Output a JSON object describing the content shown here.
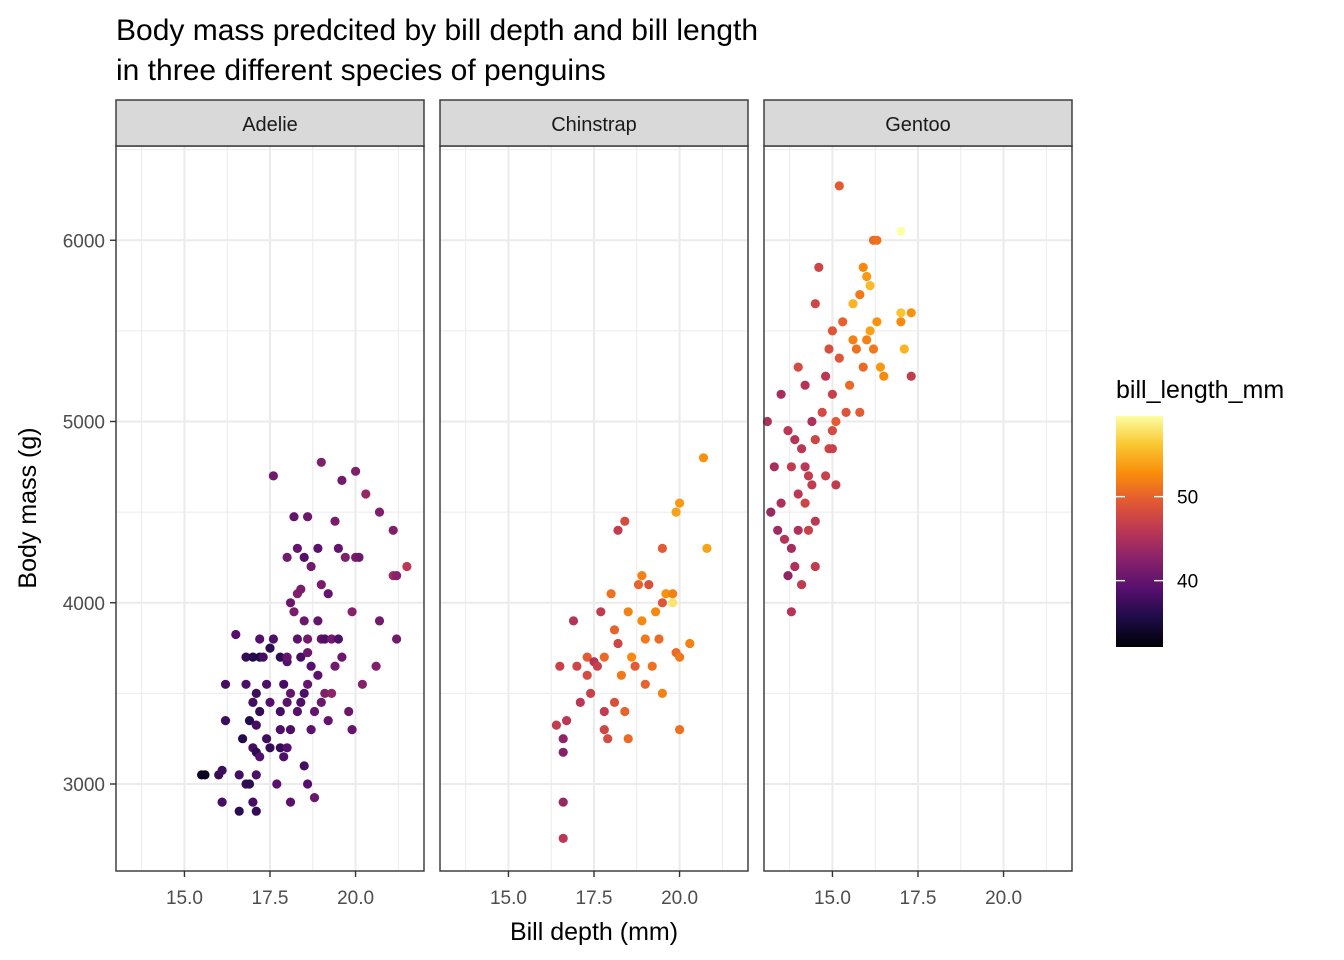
{
  "chart_data": {
    "type": "scatter",
    "title": "Body mass predcited by bill depth and bill length\nin three different species of penguins",
    "xlabel": "Bill depth (mm)",
    "ylabel": "Body mass (g)",
    "facets": [
      "Adelie",
      "Chinstrap",
      "Gentoo"
    ],
    "xlim": [
      13.0,
      22.0
    ],
    "ylim": [
      2520,
      6520
    ],
    "x_ticks": [
      15.0,
      17.5,
      20.0
    ],
    "x_tick_labels": [
      "15.0",
      "17.5",
      "20.0"
    ],
    "y_ticks": [
      3000,
      4000,
      5000,
      6000
    ],
    "y_tick_labels": [
      "3000",
      "4000",
      "5000",
      "6000"
    ],
    "grid": true,
    "legend": {
      "title": "bill_length_mm",
      "placement": "right",
      "type": "colorbar",
      "palette": "inferno",
      "range": [
        32.1,
        59.6
      ],
      "breaks": [
        40,
        50
      ],
      "break_labels": [
        "40",
        "50"
      ]
    },
    "colors": {
      "strip_fill": "#d9d9d9",
      "panel_border": "#333333",
      "grid": "#ebebeb"
    },
    "series": [
      {
        "facet": "Adelie",
        "points": [
          [
            15.5,
            3050,
            34.0
          ],
          [
            15.6,
            3050,
            33.5
          ],
          [
            16.0,
            3050,
            37.0
          ],
          [
            16.1,
            3075,
            37.5
          ],
          [
            16.1,
            2900,
            38.0
          ],
          [
            16.2,
            3350,
            37.5
          ],
          [
            16.2,
            3550,
            38.0
          ],
          [
            16.6,
            2850,
            36.5
          ],
          [
            16.6,
            3050,
            38.0
          ],
          [
            16.5,
            3825,
            39.0
          ],
          [
            16.7,
            3250,
            36.0
          ],
          [
            16.8,
            3000,
            37.0
          ],
          [
            16.8,
            3550,
            38.5
          ],
          [
            16.8,
            3700,
            37.0
          ],
          [
            16.9,
            3000,
            36.5
          ],
          [
            16.9,
            3350,
            36.0
          ],
          [
            17.0,
            2900,
            38.0
          ],
          [
            17.0,
            3200,
            38.0
          ],
          [
            17.0,
            3700,
            36.0
          ],
          [
            17.0,
            3450,
            38.0
          ],
          [
            17.1,
            2850,
            37.0
          ],
          [
            17.1,
            3050,
            38.5
          ],
          [
            17.1,
            3175,
            36.5
          ],
          [
            17.1,
            3325,
            38.0
          ],
          [
            17.1,
            3500,
            37.5
          ],
          [
            17.2,
            3150,
            39.0
          ],
          [
            17.2,
            3400,
            37.0
          ],
          [
            17.2,
            3700,
            35.5
          ],
          [
            17.2,
            3800,
            39.0
          ],
          [
            17.3,
            3700,
            38.0
          ],
          [
            17.4,
            3250,
            37.5
          ],
          [
            17.4,
            3550,
            38.5
          ],
          [
            17.5,
            3200,
            37.0
          ],
          [
            17.5,
            3750,
            36.5
          ],
          [
            17.5,
            3450,
            39.0
          ],
          [
            17.6,
            3800,
            38.5
          ],
          [
            17.6,
            4700,
            41.0
          ],
          [
            17.7,
            3000,
            39.5
          ],
          [
            17.8,
            3300,
            38.5
          ],
          [
            17.8,
            3700,
            36.5
          ],
          [
            17.8,
            3200,
            37.0
          ],
          [
            17.8,
            3400,
            38.0
          ],
          [
            17.9,
            3150,
            38.5
          ],
          [
            17.9,
            3550,
            38.0
          ],
          [
            18.0,
            3200,
            39.0
          ],
          [
            18.0,
            3450,
            39.5
          ],
          [
            18.0,
            3675,
            39.0
          ],
          [
            18.0,
            4250,
            41.0
          ],
          [
            18.0,
            3700,
            40.0
          ],
          [
            18.1,
            2900,
            39.5
          ],
          [
            18.1,
            3300,
            38.5
          ],
          [
            18.1,
            3500,
            40.0
          ],
          [
            18.1,
            4000,
            40.5
          ],
          [
            18.2,
            3950,
            41.5
          ],
          [
            18.2,
            4475,
            40.0
          ],
          [
            18.3,
            3400,
            39.0
          ],
          [
            18.3,
            3800,
            39.5
          ],
          [
            18.3,
            4050,
            42.0
          ],
          [
            18.3,
            4300,
            40.0
          ],
          [
            18.4,
            3700,
            38.0
          ],
          [
            18.4,
            3450,
            38.5
          ],
          [
            18.4,
            4075,
            41.5
          ],
          [
            18.5,
            3100,
            38.0
          ],
          [
            18.5,
            3500,
            38.5
          ],
          [
            18.5,
            3900,
            40.5
          ],
          [
            18.5,
            4250,
            39.0
          ],
          [
            18.6,
            3000,
            39.0
          ],
          [
            18.6,
            3550,
            40.0
          ],
          [
            18.6,
            3800,
            41.0
          ],
          [
            18.6,
            3725,
            40.5
          ],
          [
            18.6,
            4475,
            40.5
          ],
          [
            18.7,
            3300,
            39.5
          ],
          [
            18.7,
            3650,
            39.0
          ],
          [
            18.7,
            4200,
            41.0
          ],
          [
            18.8,
            3400,
            40.0
          ],
          [
            18.8,
            2925,
            40.5
          ],
          [
            18.9,
            3600,
            39.5
          ],
          [
            18.9,
            3900,
            40.0
          ],
          [
            18.9,
            4300,
            39.5
          ],
          [
            19.0,
            3450,
            40.5
          ],
          [
            19.0,
            3800,
            40.0
          ],
          [
            19.0,
            4100,
            41.5
          ],
          [
            19.0,
            4775,
            42.0
          ],
          [
            19.1,
            3500,
            42.0
          ],
          [
            19.1,
            3800,
            38.5
          ],
          [
            19.2,
            4050,
            40.0
          ],
          [
            19.2,
            3350,
            40.0
          ],
          [
            19.3,
            3500,
            43.0
          ],
          [
            19.3,
            3800,
            41.0
          ],
          [
            19.4,
            3650,
            41.0
          ],
          [
            19.4,
            4450,
            41.5
          ],
          [
            19.5,
            3800,
            38.5
          ],
          [
            19.5,
            4300,
            40.0
          ],
          [
            19.6,
            3700,
            40.5
          ],
          [
            19.6,
            4675,
            41.0
          ],
          [
            19.7,
            4250,
            42.0
          ],
          [
            19.8,
            3400,
            40.5
          ],
          [
            19.9,
            3950,
            42.5
          ],
          [
            19.9,
            3300,
            40.0
          ],
          [
            20.0,
            4725,
            42.0
          ],
          [
            20.0,
            4250,
            41.5
          ],
          [
            20.1,
            4250,
            40.5
          ],
          [
            20.2,
            3550,
            42.5
          ],
          [
            20.3,
            4600,
            43.5
          ],
          [
            20.6,
            3650,
            42.0
          ],
          [
            20.7,
            3900,
            41.0
          ],
          [
            20.7,
            4500,
            42.0
          ],
          [
            21.1,
            4400,
            42.0
          ],
          [
            21.1,
            4150,
            44.0
          ],
          [
            21.2,
            3800,
            41.0
          ],
          [
            21.2,
            4150,
            42.5
          ],
          [
            21.5,
            4200,
            46.0
          ]
        ]
      },
      {
        "facet": "Chinstrap",
        "points": [
          [
            16.4,
            3325,
            46.5
          ],
          [
            16.5,
            3650,
            47.0
          ],
          [
            16.6,
            3250,
            43.0
          ],
          [
            16.6,
            3175,
            42.5
          ],
          [
            16.6,
            2900,
            43.5
          ],
          [
            16.6,
            2700,
            46.0
          ],
          [
            16.7,
            3350,
            46.0
          ],
          [
            16.9,
            3900,
            45.5
          ],
          [
            17.0,
            3650,
            47.5
          ],
          [
            17.1,
            3450,
            46.0
          ],
          [
            17.3,
            3700,
            49.5
          ],
          [
            17.3,
            3600,
            48.0
          ],
          [
            17.4,
            3500,
            47.0
          ],
          [
            17.5,
            3675,
            45.5
          ],
          [
            17.7,
            3950,
            46.5
          ],
          [
            17.8,
            3700,
            50.5
          ],
          [
            17.8,
            3300,
            47.5
          ],
          [
            17.8,
            3400,
            46.5
          ],
          [
            17.9,
            3250,
            48.0
          ],
          [
            18.0,
            4050,
            51.0
          ],
          [
            18.1,
            3450,
            48.5
          ],
          [
            18.1,
            3850,
            50.0
          ],
          [
            18.2,
            3775,
            47.5
          ],
          [
            18.2,
            4400,
            46.5
          ],
          [
            18.3,
            3600,
            51.5
          ],
          [
            18.4,
            3400,
            50.0
          ],
          [
            18.4,
            4450,
            48.0
          ],
          [
            18.5,
            3950,
            52.0
          ],
          [
            18.5,
            3250,
            50.5
          ],
          [
            18.6,
            3700,
            52.5
          ],
          [
            18.7,
            3650,
            49.5
          ],
          [
            18.8,
            4100,
            50.0
          ],
          [
            18.9,
            4150,
            52.0
          ],
          [
            18.9,
            3900,
            52.5
          ],
          [
            19.0,
            3800,
            51.5
          ],
          [
            19.0,
            3550,
            50.0
          ],
          [
            19.1,
            4100,
            48.5
          ],
          [
            19.2,
            3650,
            51.0
          ],
          [
            19.3,
            3950,
            52.5
          ],
          [
            19.4,
            3800,
            50.5
          ],
          [
            19.5,
            4000,
            49.0
          ],
          [
            19.5,
            3500,
            52.0
          ],
          [
            19.6,
            4050,
            53.0
          ],
          [
            19.8,
            4000,
            58.0
          ],
          [
            19.8,
            4050,
            52.0
          ],
          [
            19.9,
            3725,
            50.5
          ],
          [
            19.9,
            4500,
            54.0
          ],
          [
            20.0,
            4550,
            53.5
          ],
          [
            20.0,
            3700,
            51.5
          ],
          [
            20.0,
            3300,
            51.0
          ],
          [
            20.3,
            3775,
            52.0
          ],
          [
            20.7,
            4800,
            53.0
          ],
          [
            20.8,
            4300,
            54.0
          ],
          [
            19.5,
            4300,
            49.5
          ],
          [
            17.6,
            3650,
            47.0
          ]
        ]
      },
      {
        "facet": "Gentoo",
        "points": [
          [
            13.1,
            5000,
            45.0
          ],
          [
            13.2,
            4500,
            43.5
          ],
          [
            13.3,
            4750,
            44.5
          ],
          [
            13.4,
            4400,
            44.0
          ],
          [
            13.5,
            4550,
            45.0
          ],
          [
            13.5,
            5150,
            44.5
          ],
          [
            13.6,
            4350,
            45.5
          ],
          [
            13.7,
            4150,
            43.0
          ],
          [
            13.7,
            4950,
            46.0
          ],
          [
            13.8,
            4300,
            44.5
          ],
          [
            13.8,
            4750,
            46.5
          ],
          [
            13.8,
            3950,
            45.5
          ],
          [
            13.9,
            4200,
            45.0
          ],
          [
            13.9,
            4900,
            45.5
          ],
          [
            14.0,
            4400,
            45.0
          ],
          [
            14.0,
            4600,
            46.0
          ],
          [
            14.0,
            5300,
            48.0
          ],
          [
            14.1,
            4100,
            46.5
          ],
          [
            14.1,
            4850,
            46.0
          ],
          [
            14.2,
            4550,
            47.5
          ],
          [
            14.2,
            5200,
            45.5
          ],
          [
            14.3,
            4400,
            47.0
          ],
          [
            14.3,
            4700,
            46.5
          ],
          [
            14.4,
            4650,
            46.5
          ],
          [
            14.4,
            5000,
            45.0
          ],
          [
            14.5,
            4450,
            46.0
          ],
          [
            14.5,
            4200,
            46.5
          ],
          [
            14.5,
            4900,
            47.5
          ],
          [
            14.6,
            5850,
            47.5
          ],
          [
            14.7,
            5050,
            48.0
          ],
          [
            14.8,
            4700,
            47.0
          ],
          [
            14.8,
            5250,
            46.0
          ],
          [
            14.9,
            4850,
            47.5
          ],
          [
            14.9,
            5400,
            48.5
          ],
          [
            15.0,
            4950,
            48.0
          ],
          [
            15.0,
            5500,
            49.0
          ],
          [
            15.0,
            5150,
            47.0
          ],
          [
            15.1,
            5000,
            49.5
          ],
          [
            15.1,
            4650,
            46.5
          ],
          [
            15.2,
            5350,
            49.0
          ],
          [
            15.2,
            6300,
            49.5
          ],
          [
            15.3,
            5550,
            50.0
          ],
          [
            15.4,
            5050,
            49.0
          ],
          [
            15.5,
            5200,
            50.5
          ],
          [
            15.6,
            5450,
            52.0
          ],
          [
            15.6,
            5650,
            55.0
          ],
          [
            15.7,
            5400,
            51.0
          ],
          [
            15.8,
            5050,
            49.5
          ],
          [
            15.8,
            5700,
            51.5
          ],
          [
            15.9,
            5300,
            50.5
          ],
          [
            15.9,
            5850,
            52.5
          ],
          [
            16.0,
            5800,
            53.5
          ],
          [
            16.0,
            5450,
            52.0
          ],
          [
            16.1,
            5500,
            54.0
          ],
          [
            16.1,
            5750,
            55.5
          ],
          [
            16.2,
            6000,
            50.5
          ],
          [
            16.2,
            5400,
            51.5
          ],
          [
            16.3,
            5550,
            53.0
          ],
          [
            16.3,
            6000,
            51.0
          ],
          [
            16.4,
            5300,
            53.5
          ],
          [
            16.5,
            5250,
            52.5
          ],
          [
            17.0,
            6050,
            59.6
          ],
          [
            17.0,
            5600,
            56.0
          ],
          [
            17.0,
            5550,
            52.5
          ],
          [
            17.1,
            5400,
            55.0
          ],
          [
            17.3,
            5600,
            53.0
          ],
          [
            17.3,
            5250,
            46.5
          ],
          [
            14.2,
            4750,
            46.0
          ],
          [
            15.0,
            4850,
            47.0
          ],
          [
            14.5,
            5650,
            47.5
          ]
        ]
      }
    ]
  }
}
